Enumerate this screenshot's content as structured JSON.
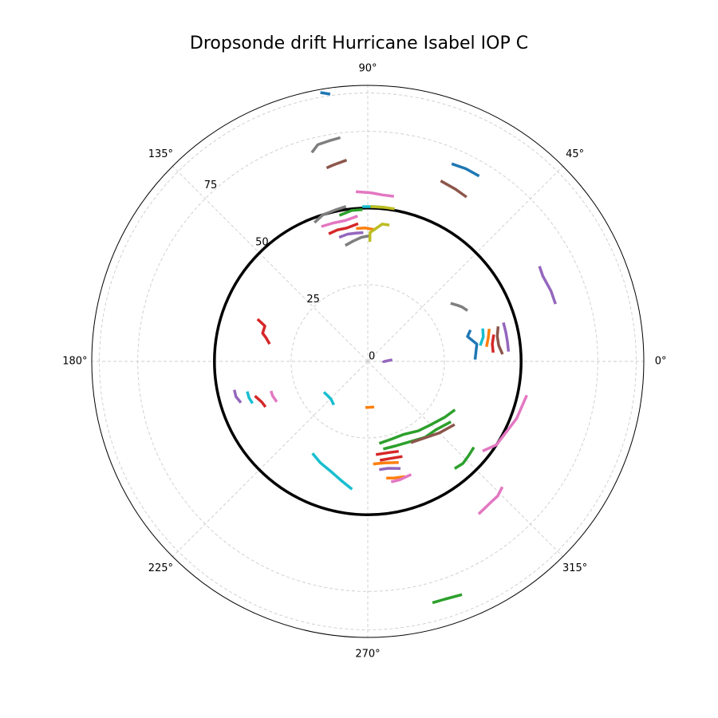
{
  "chart_data": {
    "type": "polar-line",
    "title": "Dropsonde drift Hurricane Isabel IOP C",
    "angle_unit": "degrees",
    "theta_ticks": [
      "0°",
      "45°",
      "90°",
      "135°",
      "180°",
      "225°",
      "270°",
      "315°"
    ],
    "theta_tick_values": [
      0,
      45,
      90,
      135,
      180,
      225,
      270,
      315
    ],
    "r_ticks": [
      "0",
      "25",
      "50",
      "75"
    ],
    "r_tick_values": [
      0,
      25,
      50,
      75
    ],
    "rlim": [
      0,
      90
    ],
    "grid": true,
    "reference_circle": {
      "r": 50,
      "color": "#000000"
    },
    "series": [
      {
        "color": "#1f77b4",
        "points": [
          [
            100,
            89
          ],
          [
            98,
            88
          ]
        ]
      },
      {
        "color": "#7f7f7f",
        "points": [
          [
            97,
            73.5
          ],
          [
            100,
            73.0
          ],
          [
            103,
            72.5
          ],
          [
            105,
            70.5
          ]
        ]
      },
      {
        "color": "#8c564b",
        "points": [
          [
            96,
            66
          ],
          [
            100,
            65
          ],
          [
            102,
            64.5
          ]
        ]
      },
      {
        "color": "#1f77b4",
        "points": [
          [
            59,
            70.5
          ],
          [
            63,
            70.5
          ],
          [
            67,
            70
          ]
        ]
      },
      {
        "color": "#8c564b",
        "points": [
          [
            59,
            62.5
          ],
          [
            63,
            63
          ],
          [
            68,
            63.5
          ]
        ]
      },
      {
        "color": "#9467bd",
        "points": [
          [
            17,
            64
          ],
          [
            21,
            64
          ],
          [
            26,
            63.5
          ],
          [
            29,
            64
          ]
        ]
      },
      {
        "color": "#e377c2",
        "points": [
          [
            81,
            54.5
          ],
          [
            85,
            54.5
          ],
          [
            89,
            55.0
          ],
          [
            94,
            55.5
          ]
        ]
      },
      {
        "color": "#17becf",
        "points": [
          [
            84,
            50.5
          ],
          [
            88,
            50.5
          ],
          [
            92,
            50.5
          ]
        ]
      },
      {
        "color": "#bcbd22",
        "points": [
          [
            80,
            50.5
          ],
          [
            84,
            50.5
          ],
          [
            89,
            50.5
          ]
        ]
      },
      {
        "color": "#7f7f7f",
        "points": [
          [
            98,
            51
          ],
          [
            102,
            50.5
          ],
          [
            107,
            50
          ],
          [
            111,
            48.5
          ]
        ]
      },
      {
        "color": "#2ca02c",
        "points": [
          [
            92,
            49.5
          ],
          [
            96,
            49.5
          ],
          [
            101,
            48.5
          ]
        ]
      },
      {
        "color": "#e377c2",
        "points": [
          [
            94,
            47.5
          ],
          [
            99,
            46.5
          ],
          [
            104,
            46.5
          ],
          [
            109,
            46.5
          ]
        ]
      },
      {
        "color": "#d62728",
        "points": [
          [
            94,
            45
          ],
          [
            99,
            44
          ],
          [
            103,
            44
          ],
          [
            107,
            43.5
          ]
        ]
      },
      {
        "color": "#ff7f0e",
        "points": [
          [
            87,
            43
          ],
          [
            91,
            43.5
          ],
          [
            95,
            43.5
          ]
        ]
      },
      {
        "color": "#9467bd",
        "points": [
          [
            92,
            42
          ],
          [
            95,
            42
          ],
          [
            99,
            42
          ],
          [
            103,
            41.5
          ]
        ]
      },
      {
        "color": "#7f7f7f",
        "points": [
          [
            89,
            41
          ],
          [
            93,
            40.5
          ],
          [
            97,
            39.5
          ],
          [
            101,
            38.5
          ]
        ]
      },
      {
        "color": "#bcbd22",
        "points": [
          [
            81,
            45
          ],
          [
            84,
            45
          ],
          [
            89,
            42
          ],
          [
            89,
            39
          ]
        ]
      },
      {
        "color": "#7f7f7f",
        "points": [
          [
            27,
            36.5
          ],
          [
            30,
            35.5
          ],
          [
            32,
            34.5
          ],
          [
            35,
            33
          ]
        ]
      },
      {
        "color": "#1f77b4",
        "points": [
          [
            17,
            35
          ],
          [
            14,
            33.5
          ],
          [
            9,
            36
          ],
          [
            1,
            35
          ]
        ]
      },
      {
        "color": "#17becf",
        "points": [
          [
            16,
            39
          ],
          [
            12,
            38.5
          ],
          [
            8,
            37
          ]
        ]
      },
      {
        "color": "#ff7f0e",
        "points": [
          [
            15,
            41
          ],
          [
            11,
            40
          ],
          [
            7,
            39
          ]
        ]
      },
      {
        "color": "#d62728",
        "points": [
          [
            12,
            42
          ],
          [
            8,
            41
          ],
          [
            4,
            41
          ]
        ]
      },
      {
        "color": "#8c564b",
        "points": [
          [
            15,
            44
          ],
          [
            11,
            43
          ],
          [
            7,
            43
          ],
          [
            3,
            44
          ]
        ]
      },
      {
        "color": "#9467bd",
        "points": [
          [
            16,
            46
          ],
          [
            12,
            46
          ],
          [
            8,
            46
          ],
          [
            4,
            46
          ]
        ]
      },
      {
        "color": "#d62728",
        "points": [
          [
            159,
            38.5
          ],
          [
            161,
            35.5
          ],
          [
            165,
            35.5
          ],
          [
            167,
            34
          ],
          [
            170,
            32.5
          ]
        ]
      },
      {
        "color": "#9467bd",
        "points": [
          [
            192,
            44.5
          ],
          [
            195,
            44.5
          ],
          [
            198,
            43.5
          ]
        ]
      },
      {
        "color": "#17becf",
        "points": [
          [
            194,
            40.5
          ],
          [
            197,
            40.5
          ],
          [
            200,
            40
          ]
        ]
      },
      {
        "color": "#d62728",
        "points": [
          [
            197,
            38.5
          ],
          [
            201,
            37
          ],
          [
            204,
            36.5
          ]
        ]
      },
      {
        "color": "#e377c2",
        "points": [
          [
            197,
            33
          ],
          [
            200,
            33
          ],
          [
            204,
            32.5
          ]
        ]
      },
      {
        "color": "#17becf",
        "points": [
          [
            215,
            17.5
          ],
          [
            220,
            17.2
          ],
          [
            226,
            17.2
          ],
          [
            232,
            18
          ]
        ]
      },
      {
        "color": "#17becf",
        "points": [
          [
            239,
            35
          ],
          [
            245,
            36.5
          ],
          [
            252,
            38
          ],
          [
            258,
            40
          ],
          [
            263,
            42
          ]
        ]
      },
      {
        "color": "#ff7f0e",
        "points": [
          [
            267,
            15
          ],
          [
            269,
            15
          ],
          [
            275,
            15
          ],
          [
            278,
            15
          ]
        ]
      },
      {
        "color": "#9467bd",
        "points": [
          [
            355,
            5.1
          ],
          [
            358,
            5.1
          ],
          [
            0,
            5.5
          ],
          [
            4,
            8
          ]
        ]
      },
      {
        "color": "#2ca02c",
        "points": [
          [
            278,
            27
          ],
          [
            287,
            26.5
          ],
          [
            296,
            26.5
          ],
          [
            306,
            28
          ],
          [
            314,
            29
          ],
          [
            324,
            31
          ],
          [
            331,
            32.5
          ]
        ]
      },
      {
        "color": "#2ca02c",
        "points": [
          [
            280,
            29
          ],
          [
            288,
            29
          ],
          [
            297,
            29.5
          ],
          [
            307,
            31
          ],
          [
            315,
            31.5
          ],
          [
            324,
            33.5
          ]
        ]
      },
      {
        "color": "#8c564b",
        "points": [
          [
            298,
            30
          ],
          [
            306,
            31
          ],
          [
            315,
            33
          ],
          [
            324,
            35
          ]
        ]
      },
      {
        "color": "#d62728",
        "points": [
          [
            275,
            30.5
          ],
          [
            283,
            30.5
          ],
          [
            289,
            31
          ]
        ]
      },
      {
        "color": "#d62728",
        "points": [
          [
            277,
            32.5
          ],
          [
            283,
            32.5
          ],
          [
            290,
            33
          ]
        ]
      },
      {
        "color": "#ff7f0e",
        "points": [
          [
            273,
            33.5
          ],
          [
            279,
            33.5
          ],
          [
            287,
            34.5
          ]
        ]
      },
      {
        "color": "#9467bd",
        "points": [
          [
            276,
            35.5
          ],
          [
            281,
            35.5
          ],
          [
            287,
            36.5
          ]
        ]
      },
      {
        "color": "#ff7f0e",
        "points": [
          [
            279,
            38.5
          ],
          [
            283,
            39
          ],
          [
            288,
            39.5
          ]
        ]
      },
      {
        "color": "#e377c2",
        "points": [
          [
            281,
            40
          ],
          [
            285,
            40
          ],
          [
            291,
            39.5
          ]
        ]
      },
      {
        "color": "#2ca02c",
        "points": [
          [
            309,
            45
          ],
          [
            313,
            45.5
          ],
          [
            317,
            45
          ],
          [
            321,
            44.5
          ]
        ]
      },
      {
        "color": "#e377c2",
        "points": [
          [
            322,
            47.5
          ],
          [
            327,
            50
          ],
          [
            339,
            52
          ],
          [
            348,
            53
          ]
        ]
      },
      {
        "color": "#e377c2",
        "points": [
          [
            306,
            61.5
          ],
          [
            311,
            61
          ],
          [
            314,
            61
          ],
          [
            317,
            60
          ]
        ]
      },
      {
        "color": "#2ca02c",
        "points": [
          [
            285,
            81.5
          ],
          [
            288,
            81.5
          ],
          [
            292,
            82
          ]
        ]
      }
    ]
  }
}
